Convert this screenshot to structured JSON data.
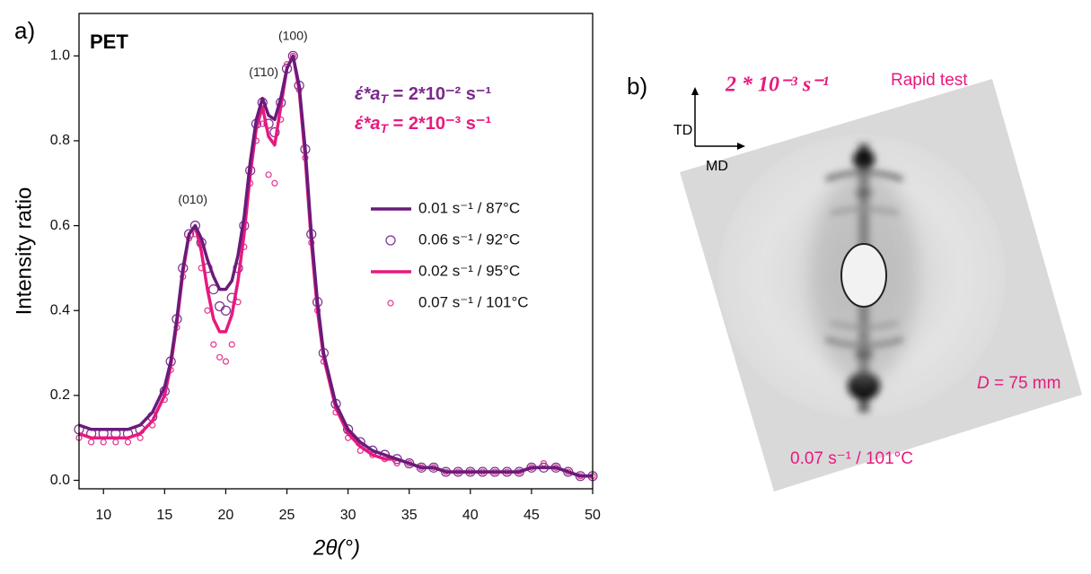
{
  "chart_data": {
    "type": "line",
    "panel_label": "a)",
    "title": "PET",
    "xlabel": "2θ(°)",
    "ylabel": "Intensity ratio",
    "annotations": [
      {
        "parts": [
          "έ*a",
          "T",
          " = 2*10⁻² s⁻¹"
        ],
        "color": "#7b2a8c"
      },
      {
        "parts": [
          "έ*a",
          "T",
          " = 2*10⁻³ s⁻¹"
        ],
        "color": "#e8197e"
      }
    ],
    "peak_labels": [
      "(010)",
      "(1̄10)",
      "(100)"
    ],
    "legend": "center right",
    "xlim": [
      8,
      50
    ],
    "ylim": [
      -0.02,
      1.1
    ],
    "xticks": [
      10,
      15,
      20,
      25,
      30,
      35,
      40,
      45,
      50
    ],
    "yticks": [
      {
        "value": 0,
        "label": "0.0"
      },
      0.2,
      0.4,
      0.6,
      0.8,
      {
        "value": 1,
        "label": "1.0"
      }
    ],
    "x": [
      8,
      9,
      10,
      11,
      12,
      13,
      14,
      15,
      15.5,
      16,
      16.5,
      17,
      17.5,
      18,
      18.5,
      19,
      19.5,
      20,
      20.5,
      21,
      21.5,
      22,
      22.5,
      23,
      23.5,
      24,
      24.5,
      25,
      25.5,
      26,
      26.5,
      27,
      27.5,
      28,
      29,
      30,
      31,
      32,
      33,
      34,
      35,
      36,
      37,
      38,
      39,
      40,
      41,
      42,
      43,
      44,
      45,
      46,
      47,
      48,
      49,
      50
    ],
    "series": [
      {
        "name": "0.01 s⁻¹ / 87°C",
        "color": "#6a1b7a",
        "mode": "line",
        "values": [
          0.13,
          0.12,
          0.12,
          0.12,
          0.12,
          0.13,
          0.16,
          0.22,
          0.28,
          0.38,
          0.5,
          0.58,
          0.6,
          0.57,
          0.52,
          0.48,
          0.45,
          0.45,
          0.47,
          0.53,
          0.62,
          0.75,
          0.85,
          0.9,
          0.86,
          0.85,
          0.9,
          0.97,
          1.0,
          0.93,
          0.78,
          0.58,
          0.42,
          0.3,
          0.18,
          0.12,
          0.09,
          0.07,
          0.06,
          0.05,
          0.04,
          0.03,
          0.03,
          0.02,
          0.02,
          0.02,
          0.02,
          0.02,
          0.02,
          0.02,
          0.03,
          0.03,
          0.03,
          0.02,
          0.01,
          0.01
        ]
      },
      {
        "name": "0.06 s⁻¹ / 92°C",
        "color": "#7b2d8e",
        "mode": "markers",
        "marker": "large",
        "values": [
          0.12,
          0.11,
          0.11,
          0.11,
          0.11,
          0.12,
          0.15,
          0.21,
          0.28,
          0.38,
          0.5,
          0.58,
          0.6,
          0.56,
          0.5,
          0.45,
          0.41,
          0.4,
          0.43,
          0.5,
          0.6,
          0.73,
          0.84,
          0.89,
          0.84,
          0.82,
          0.89,
          0.97,
          1.0,
          0.93,
          0.78,
          0.58,
          0.42,
          0.3,
          0.18,
          0.12,
          0.09,
          0.07,
          0.06,
          0.05,
          0.04,
          0.03,
          0.03,
          0.02,
          0.02,
          0.02,
          0.02,
          0.02,
          0.02,
          0.02,
          0.03,
          0.03,
          0.03,
          0.02,
          0.01,
          0.01
        ]
      },
      {
        "name": "0.02 s⁻¹ / 95°C",
        "color": "#e8197e",
        "mode": "line",
        "values": [
          0.11,
          0.1,
          0.1,
          0.1,
          0.1,
          0.11,
          0.14,
          0.2,
          0.27,
          0.37,
          0.49,
          0.58,
          0.6,
          0.54,
          0.45,
          0.38,
          0.35,
          0.35,
          0.39,
          0.47,
          0.58,
          0.72,
          0.83,
          0.88,
          0.81,
          0.79,
          0.88,
          0.97,
          1.0,
          0.92,
          0.76,
          0.56,
          0.4,
          0.29,
          0.17,
          0.11,
          0.08,
          0.06,
          0.05,
          0.05,
          0.04,
          0.03,
          0.03,
          0.02,
          0.02,
          0.02,
          0.02,
          0.02,
          0.02,
          0.02,
          0.03,
          0.03,
          0.03,
          0.02,
          0.01,
          0.01
        ]
      },
      {
        "name": "0.07 s⁻¹ / 101°C",
        "color": "#e2338f",
        "mode": "markers",
        "marker": "small",
        "values": [
          0.1,
          0.09,
          0.09,
          0.09,
          0.09,
          0.1,
          0.13,
          0.19,
          0.26,
          0.36,
          0.48,
          0.57,
          0.58,
          0.5,
          0.4,
          0.32,
          0.29,
          0.28,
          0.32,
          0.42,
          0.55,
          0.7,
          0.8,
          0.84,
          0.72,
          0.7,
          0.85,
          0.98,
          1.0,
          0.92,
          0.76,
          0.56,
          0.4,
          0.28,
          0.16,
          0.1,
          0.07,
          0.06,
          0.05,
          0.04,
          0.04,
          0.03,
          0.03,
          0.02,
          0.02,
          0.02,
          0.02,
          0.02,
          0.02,
          0.02,
          0.03,
          0.04,
          0.03,
          0.02,
          0.01,
          0.01
        ]
      }
    ]
  },
  "panel_b": {
    "label": "b)",
    "rate": "2 * 10⁻³ s⁻¹",
    "test": "Rapid test",
    "td": "TD",
    "md": "MD",
    "distance": [
      "D",
      " = 75 mm"
    ],
    "condition": "0.07 s⁻¹ / 101°C"
  }
}
